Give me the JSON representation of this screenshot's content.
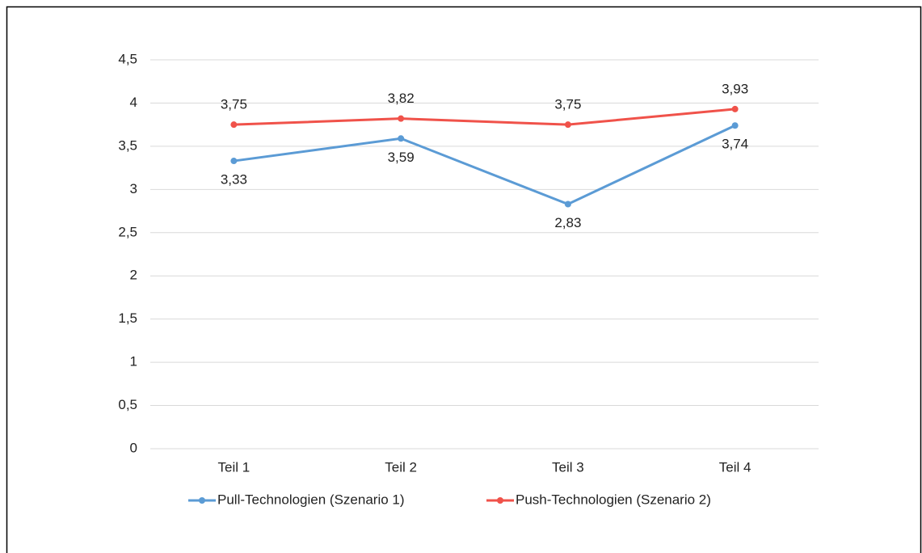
{
  "chart_data": {
    "type": "line",
    "categories": [
      "Teil 1",
      "Teil 2",
      "Teil 3",
      "Teil 4"
    ],
    "series": [
      {
        "name": "Pull-Technologien (Szenario 1)",
        "color": "#5b9bd5",
        "values": [
          3.33,
          3.59,
          2.83,
          3.74
        ],
        "value_labels": [
          "3,33",
          "3,59",
          "2,83",
          "3,74"
        ]
      },
      {
        "name": "Push-Technologien (Szenario 2)",
        "color": "#f0524a",
        "values": [
          3.75,
          3.82,
          3.75,
          3.93
        ],
        "value_labels": [
          "3,75",
          "3,82",
          "3,75",
          "3,93"
        ]
      }
    ],
    "ylim": [
      0,
      4.5
    ],
    "yticks": [
      0,
      {
        "value": 0.5,
        "label": "0,5"
      },
      1,
      {
        "value": 1.5,
        "label": "1,5"
      },
      2,
      {
        "value": 2.5,
        "label": "2,5"
      },
      3,
      {
        "value": 3.5,
        "label": "3,5"
      },
      4,
      {
        "value": 4.5,
        "label": "4,5"
      }
    ],
    "grid": true,
    "legend": "bottom"
  }
}
